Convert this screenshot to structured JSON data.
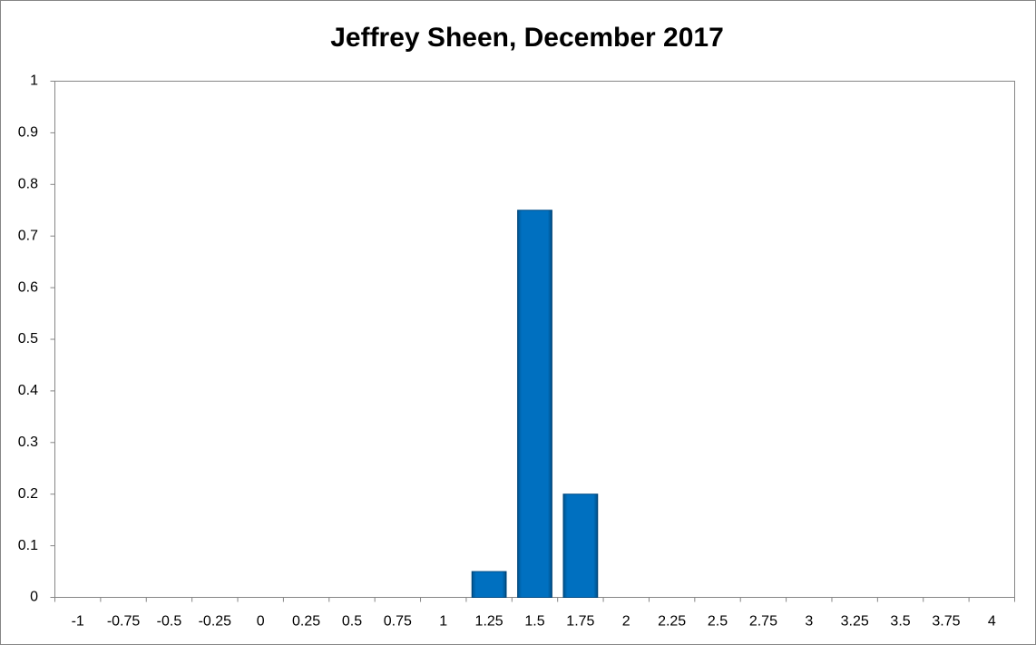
{
  "chart_data": {
    "type": "bar",
    "title": "Jeffrey Sheen, December 2017",
    "categories": [
      "-1",
      "-0.75",
      "-0.5",
      "-0.25",
      "0",
      "0.25",
      "0.5",
      "0.75",
      "1",
      "1.25",
      "1.5",
      "1.75",
      "2",
      "2.25",
      "2.5",
      "2.75",
      "3",
      "3.25",
      "3.5",
      "3.75",
      "4"
    ],
    "values": [
      0,
      0,
      0,
      0,
      0,
      0,
      0,
      0,
      0,
      0.05,
      0.75,
      0.2,
      0,
      0,
      0,
      0,
      0,
      0,
      0,
      0,
      0
    ],
    "color": "#0070c0",
    "ylim": [
      0,
      1
    ],
    "yticks": [
      0,
      0.1,
      0.2,
      0.3,
      0.4,
      0.5,
      0.6,
      0.7,
      0.8,
      0.9,
      1
    ],
    "grid": false
  }
}
